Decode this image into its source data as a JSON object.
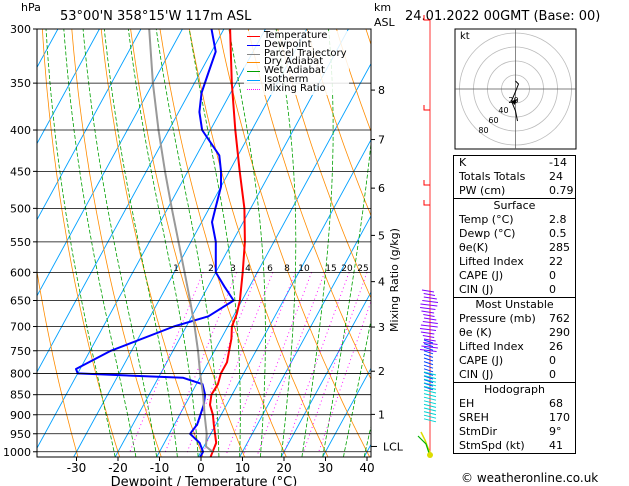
{
  "header": {
    "station": "53°00'N  358°15'W  117m  ASL",
    "datetime": "24.01.2022  00GMT  (Base: 00)",
    "hpa_label": "hPa",
    "km_label": "km",
    "asl_label": "ASL"
  },
  "legend": [
    {
      "name": "Temperature",
      "color": "#ff0000",
      "style": "solid"
    },
    {
      "name": "Dewpoint",
      "color": "#0000ff",
      "style": "solid"
    },
    {
      "name": "Parcel Trajectory",
      "color": "#888888",
      "style": "solid"
    },
    {
      "name": "Dry Adiabat",
      "color": "#ff8c00",
      "style": "solid"
    },
    {
      "name": "Wet Adiabat",
      "color": "#00a000",
      "style": "solid"
    },
    {
      "name": "Isotherm",
      "color": "#00a0ff",
      "style": "solid"
    },
    {
      "name": "Mixing Ratio",
      "color": "#ff00ff",
      "style": "dotted"
    }
  ],
  "chart_data": {
    "type": "line",
    "title": "",
    "xlabel": "Dewpoint / Temperature (°C)",
    "ylabel": "hPa",
    "right_axis_label": "Mixing Ratio (g/kg)",
    "x_ticks": [
      "-30",
      "-20",
      "-10",
      "0",
      "10",
      "20",
      "30",
      "40"
    ],
    "p_ticks": [
      "300",
      "350",
      "400",
      "450",
      "500",
      "550",
      "600",
      "650",
      "700",
      "750",
      "800",
      "850",
      "900",
      "950",
      "1000"
    ],
    "km_ticks": [
      {
        "km": "8",
        "p": 357
      },
      {
        "km": "7",
        "p": 411
      },
      {
        "km": "6",
        "p": 472
      },
      {
        "km": "5",
        "p": 540
      },
      {
        "km": "4",
        "p": 616
      },
      {
        "km": "3",
        "p": 701
      },
      {
        "km": "2",
        "p": 795
      },
      {
        "km": "1",
        "p": 899
      }
    ],
    "mixing_ratio_labels": [
      "1",
      "2",
      "3",
      "4",
      "6",
      "8",
      "10",
      "15",
      "20",
      "25"
    ],
    "lcl_label": "LCL",
    "lcl_p": 985,
    "xlim": [
      -38,
      40
    ],
    "plim": [
      300,
      1015
    ],
    "series": [
      {
        "name": "Temperature",
        "points": [
          [
            1015,
            3.0
          ],
          [
            1000,
            2.8
          ],
          [
            975,
            2.5
          ],
          [
            950,
            1.0
          ],
          [
            925,
            -0.5
          ],
          [
            900,
            -2.0
          ],
          [
            875,
            -4.0
          ],
          [
            850,
            -5.0
          ],
          [
            825,
            -4.8
          ],
          [
            800,
            -5.5
          ],
          [
            775,
            -5.5
          ],
          [
            750,
            -6.5
          ],
          [
            725,
            -7.5
          ],
          [
            700,
            -9.0
          ],
          [
            675,
            -9.5
          ],
          [
            650,
            -10.5
          ],
          [
            600,
            -13.5
          ],
          [
            550,
            -17.0
          ],
          [
            500,
            -21.5
          ],
          [
            450,
            -27.5
          ],
          [
            400,
            -34.0
          ],
          [
            350,
            -41.0
          ],
          [
            300,
            -48.5
          ]
        ]
      },
      {
        "name": "Dewpoint",
        "points": [
          [
            1015,
            0.5
          ],
          [
            1000,
            0.5
          ],
          [
            975,
            -1.5
          ],
          [
            950,
            -5.0
          ],
          [
            925,
            -4.5
          ],
          [
            900,
            -5.0
          ],
          [
            875,
            -5.5
          ],
          [
            850,
            -6.5
          ],
          [
            825,
            -8.5
          ],
          [
            810,
            -14.0
          ],
          [
            800,
            -40.0
          ],
          [
            790,
            -41.0
          ],
          [
            750,
            -35.0
          ],
          [
            700,
            -23.0
          ],
          [
            680,
            -16.0
          ],
          [
            650,
            -12.0
          ],
          [
            625,
            -16.0
          ],
          [
            600,
            -20.0
          ],
          [
            550,
            -24.0
          ],
          [
            520,
            -27.5
          ],
          [
            500,
            -28.5
          ],
          [
            470,
            -30.0
          ],
          [
            450,
            -32.0
          ],
          [
            430,
            -34.5
          ],
          [
            400,
            -42.0
          ],
          [
            380,
            -45.0
          ],
          [
            360,
            -47.0
          ],
          [
            340,
            -48.0
          ],
          [
            320,
            -49.0
          ],
          [
            300,
            -53.0
          ]
        ]
      },
      {
        "name": "Parcel Trajectory",
        "points": [
          [
            1000,
            2.8
          ],
          [
            985,
            0.5
          ],
          [
            950,
            -1.0
          ],
          [
            900,
            -4.0
          ],
          [
            850,
            -7.0
          ],
          [
            800,
            -10.5
          ],
          [
            750,
            -14.0
          ],
          [
            700,
            -18.0
          ],
          [
            650,
            -22.5
          ],
          [
            600,
            -27.5
          ],
          [
            550,
            -33.0
          ],
          [
            500,
            -39.0
          ],
          [
            450,
            -45.5
          ],
          [
            400,
            -52.5
          ],
          [
            350,
            -60.0
          ],
          [
            300,
            -68.0
          ]
        ]
      }
    ],
    "wind_profile": {
      "low_level_color": "#00d2d2",
      "upper_color": "#8000ff",
      "surface_color": "#dddd00"
    }
  },
  "hodograph": {
    "label": "kt",
    "rings": [
      "20",
      "40",
      "60",
      "80",
      "100",
      "120"
    ]
  },
  "stats": {
    "basic": [
      {
        "label": "K",
        "value": "-14"
      },
      {
        "label": "Totals Totals",
        "value": "24"
      },
      {
        "label": "PW (cm)",
        "value": "0.79"
      }
    ],
    "surface": {
      "title": "Surface",
      "rows": [
        {
          "label": "Temp (°C)",
          "value": "2.8"
        },
        {
          "label": "Dewp (°C)",
          "value": "0.5"
        },
        {
          "label": "θe(K)",
          "value": "285"
        },
        {
          "label": "Lifted Index",
          "value": "22"
        },
        {
          "label": "CAPE (J)",
          "value": "0"
        },
        {
          "label": "CIN (J)",
          "value": "0"
        }
      ]
    },
    "most_unstable": {
      "title": "Most Unstable",
      "rows": [
        {
          "label": "Pressure (mb)",
          "value": "762"
        },
        {
          "label": "θe (K)",
          "value": "290"
        },
        {
          "label": "Lifted Index",
          "value": "26"
        },
        {
          "label": "CAPE (J)",
          "value": "0"
        },
        {
          "label": "CIN (J)",
          "value": "0"
        }
      ]
    },
    "hodograph": {
      "title": "Hodograph",
      "rows": [
        {
          "label": "EH",
          "value": "68"
        },
        {
          "label": "SREH",
          "value": "170"
        },
        {
          "label": "StmDir",
          "value": "9°"
        },
        {
          "label": "StmSpd (kt)",
          "value": "41"
        }
      ]
    }
  },
  "footer": {
    "copyright": "© weatheronline.co.uk"
  }
}
